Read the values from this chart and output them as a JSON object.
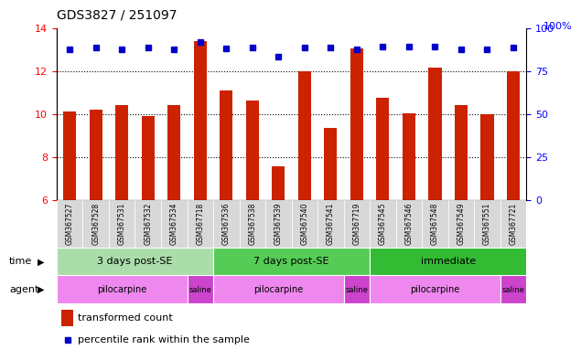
{
  "title": "GDS3827 / 251097",
  "samples": [
    "GSM367527",
    "GSM367528",
    "GSM367531",
    "GSM367532",
    "GSM367534",
    "GSM367718",
    "GSM367536",
    "GSM367538",
    "GSM367539",
    "GSM367540",
    "GSM367541",
    "GSM367719",
    "GSM367545",
    "GSM367546",
    "GSM367548",
    "GSM367549",
    "GSM367551",
    "GSM367721"
  ],
  "bar_values": [
    10.1,
    10.2,
    10.4,
    9.9,
    10.4,
    13.4,
    11.1,
    10.65,
    7.55,
    12.0,
    9.35,
    13.05,
    10.75,
    10.05,
    12.15,
    10.4,
    10.0,
    12.0
  ],
  "dot_values": [
    13.0,
    13.1,
    13.0,
    13.1,
    13.0,
    13.35,
    13.05,
    13.1,
    12.65,
    13.1,
    13.1,
    13.0,
    13.15,
    13.15,
    13.15,
    13.0,
    13.0,
    13.1
  ],
  "ylim": [
    6,
    14
  ],
  "yticks_left": [
    6,
    8,
    10,
    12,
    14
  ],
  "yticks_right": [
    0,
    25,
    50,
    75,
    100
  ],
  "bar_color": "#cc2200",
  "dot_color": "#0000cc",
  "time_groups": [
    {
      "label": "3 days post-SE",
      "start": 0,
      "end": 5,
      "color": "#aaddaa"
    },
    {
      "label": "7 days post-SE",
      "start": 6,
      "end": 11,
      "color": "#55cc55"
    },
    {
      "label": "immediate",
      "start": 12,
      "end": 17,
      "color": "#33bb33"
    }
  ],
  "agent_groups": [
    {
      "label": "pilocarpine",
      "start": 0,
      "end": 4,
      "color": "#ee88ee"
    },
    {
      "label": "saline",
      "start": 5,
      "end": 5,
      "color": "#cc44cc"
    },
    {
      "label": "pilocarpine",
      "start": 6,
      "end": 10,
      "color": "#ee88ee"
    },
    {
      "label": "saline",
      "start": 11,
      "end": 11,
      "color": "#cc44cc"
    },
    {
      "label": "pilocarpine",
      "start": 12,
      "end": 16,
      "color": "#ee88ee"
    },
    {
      "label": "saline",
      "start": 17,
      "end": 17,
      "color": "#cc44cc"
    }
  ],
  "legend_bar_label": "transformed count",
  "legend_dot_label": "percentile rank within the sample",
  "time_label": "time",
  "agent_label": "agent",
  "right_axis_top_label": "100%"
}
